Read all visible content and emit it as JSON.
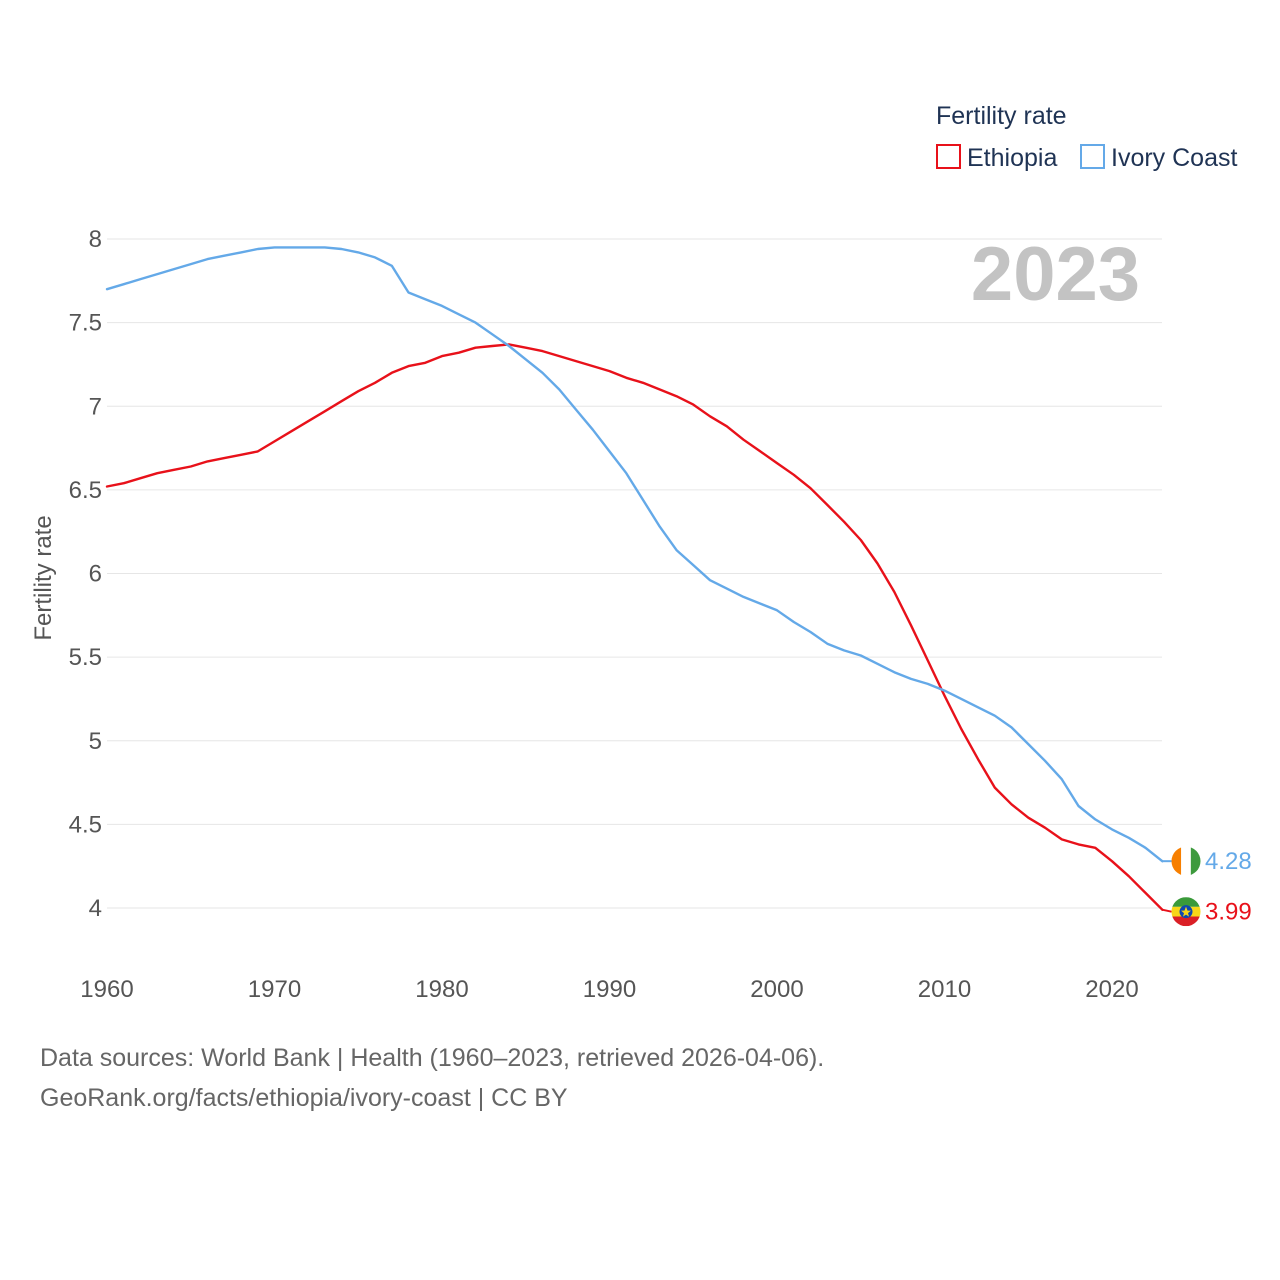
{
  "chart_data": {
    "type": "line",
    "ylabel": "Fertility rate",
    "legend_title": "Fertility rate",
    "year_label": "2023",
    "x_ticks": [
      1960,
      1970,
      1980,
      1990,
      2000,
      2010,
      2020
    ],
    "y_ticks": [
      4,
      4.5,
      5,
      5.5,
      6,
      6.5,
      7,
      7.5,
      8
    ],
    "y_tick_labels": [
      "4",
      "4.5",
      "5",
      "5.5",
      "6",
      "6.5",
      "7",
      "7.5",
      "8"
    ],
    "x_tick_labels": [
      "1960",
      "1970",
      "1980",
      "1990",
      "2000",
      "2010",
      "2020"
    ],
    "xlim": [
      1960,
      2023
    ],
    "ylim": [
      3.7,
      8.05
    ],
    "series": [
      {
        "name": "Ethiopia",
        "color": "#e8111a",
        "end_label": "3.99",
        "flag": "ethiopia-flag",
        "x": [
          1960,
          1961,
          1962,
          1963,
          1964,
          1965,
          1966,
          1967,
          1968,
          1969,
          1970,
          1971,
          1972,
          1973,
          1974,
          1975,
          1976,
          1977,
          1978,
          1979,
          1980,
          1981,
          1982,
          1983,
          1984,
          1985,
          1986,
          1987,
          1988,
          1989,
          1990,
          1991,
          1992,
          1993,
          1994,
          1995,
          1996,
          1997,
          1998,
          1999,
          2000,
          2001,
          2002,
          2003,
          2004,
          2005,
          2006,
          2007,
          2008,
          2009,
          2010,
          2011,
          2012,
          2013,
          2014,
          2015,
          2016,
          2017,
          2018,
          2019,
          2020,
          2021,
          2022,
          2023
        ],
        "values": [
          6.52,
          6.54,
          6.57,
          6.6,
          6.62,
          6.64,
          6.67,
          6.69,
          6.71,
          6.73,
          6.79,
          6.85,
          6.91,
          6.97,
          7.03,
          7.09,
          7.14,
          7.2,
          7.24,
          7.26,
          7.3,
          7.32,
          7.35,
          7.36,
          7.37,
          7.35,
          7.33,
          7.3,
          7.27,
          7.24,
          7.21,
          7.17,
          7.14,
          7.1,
          7.06,
          7.01,
          6.94,
          6.88,
          6.8,
          6.73,
          6.66,
          6.59,
          6.51,
          6.41,
          6.31,
          6.2,
          6.06,
          5.89,
          5.69,
          5.48,
          5.27,
          5.07,
          4.89,
          4.72,
          4.62,
          4.54,
          4.48,
          4.41,
          4.38,
          4.36,
          4.28,
          4.19,
          4.09,
          3.99
        ]
      },
      {
        "name": "Ivory Coast",
        "color": "#64a9e8",
        "end_label": "4.28",
        "flag": "ivory-coast-flag",
        "x": [
          1960,
          1961,
          1962,
          1963,
          1964,
          1965,
          1966,
          1967,
          1968,
          1969,
          1970,
          1971,
          1972,
          1973,
          1974,
          1975,
          1976,
          1977,
          1978,
          1979,
          1980,
          1981,
          1982,
          1983,
          1984,
          1985,
          1986,
          1987,
          1988,
          1989,
          1990,
          1991,
          1992,
          1993,
          1994,
          1995,
          1996,
          1997,
          1998,
          1999,
          2000,
          2001,
          2002,
          2003,
          2004,
          2005,
          2006,
          2007,
          2008,
          2009,
          2010,
          2011,
          2012,
          2013,
          2014,
          2015,
          2016,
          2017,
          2018,
          2019,
          2020,
          2021,
          2022,
          2023
        ],
        "values": [
          7.7,
          7.73,
          7.76,
          7.79,
          7.82,
          7.85,
          7.88,
          7.9,
          7.92,
          7.94,
          7.95,
          7.95,
          7.95,
          7.95,
          7.94,
          7.92,
          7.89,
          7.84,
          7.68,
          7.64,
          7.6,
          7.55,
          7.5,
          7.43,
          7.36,
          7.28,
          7.2,
          7.1,
          6.98,
          6.86,
          6.73,
          6.6,
          6.44,
          6.28,
          6.14,
          6.05,
          5.96,
          5.91,
          5.86,
          5.82,
          5.78,
          5.71,
          5.65,
          5.58,
          5.54,
          5.51,
          5.46,
          5.41,
          5.37,
          5.34,
          5.3,
          5.25,
          5.2,
          5.15,
          5.08,
          4.98,
          4.88,
          4.77,
          4.61,
          4.53,
          4.47,
          4.42,
          4.36,
          4.28
        ]
      }
    ]
  },
  "footer": {
    "source_line": "Data sources: World Bank | Health (1960–2023, retrieved 2026-04-06).",
    "credit_line": "GeoRank.org/facts/ethiopia/ivory-coast | CC BY"
  }
}
